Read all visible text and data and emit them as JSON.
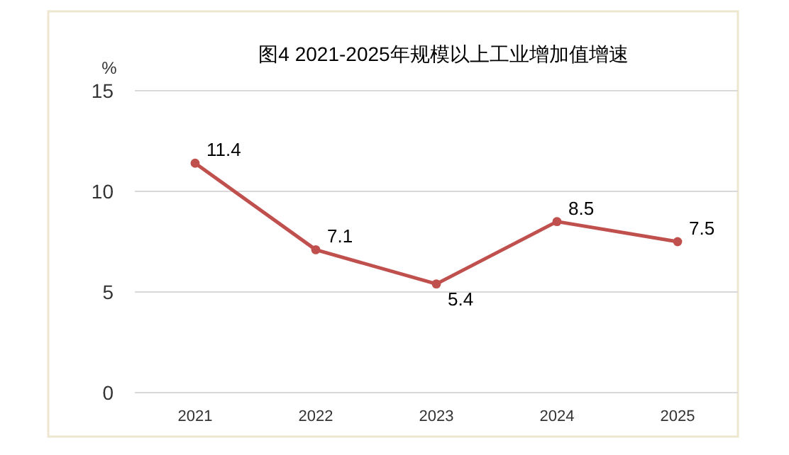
{
  "chart_data": {
    "type": "line",
    "title": "图4 2021-2025年规模以上工业增加值增速",
    "ylabel": "%",
    "categories": [
      "2021",
      "2022",
      "2023",
      "2024",
      "2025"
    ],
    "series": [
      {
        "color": "#c0504d",
        "values": [
          11.4,
          7.1,
          5.4,
          8.5,
          7.5
        ]
      }
    ],
    "ylim": [
      0,
      15
    ],
    "yticks": [
      0,
      5,
      10,
      15
    ],
    "grid": "y",
    "data_labels": true,
    "marker": "circle",
    "line_style": "solid"
  }
}
